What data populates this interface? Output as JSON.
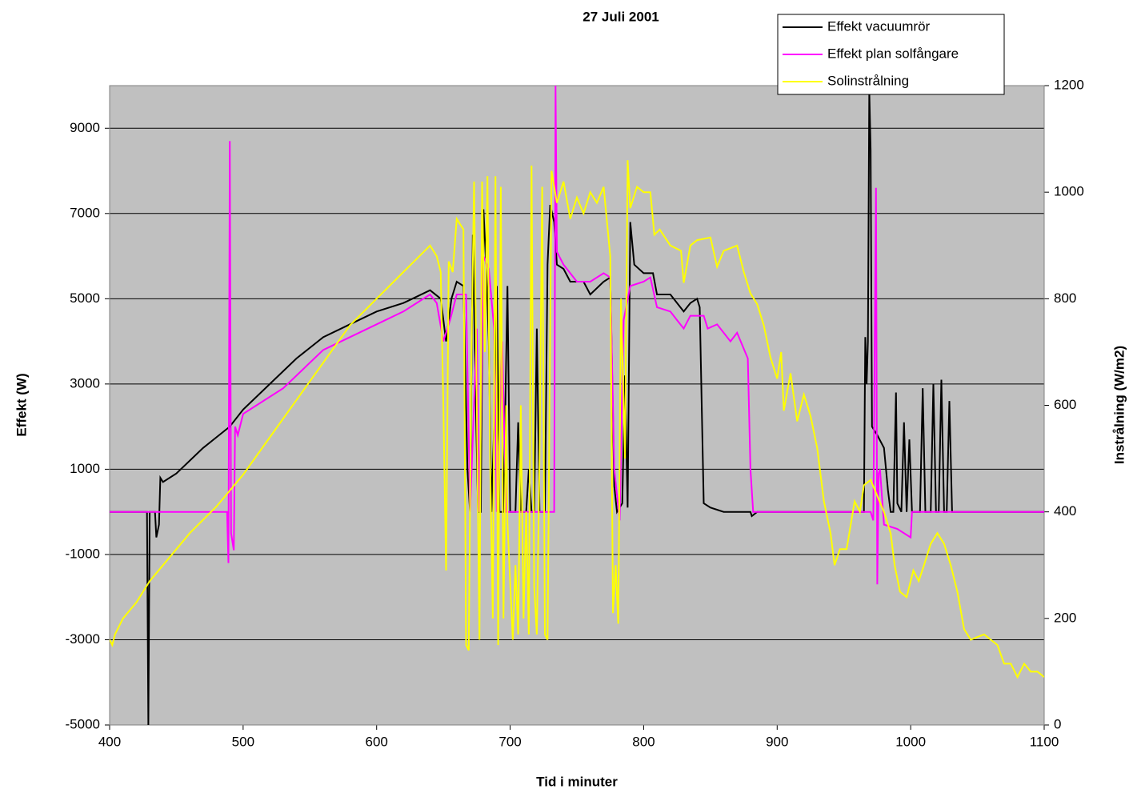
{
  "chart_data": {
    "type": "line",
    "title": "27 Juli 2001",
    "x_label": "Tid i minuter",
    "y_label": "Effekt (W)",
    "y2_label": "Instrålning (W/m2)",
    "xlim": [
      400,
      1100
    ],
    "xticks": [
      400,
      500,
      600,
      700,
      800,
      900,
      1000,
      1100
    ],
    "ylim": [
      -5000,
      10000
    ],
    "yticks": [
      -5000,
      -3000,
      -1000,
      1000,
      3000,
      5000,
      7000,
      9000
    ],
    "y2lim": [
      0,
      1200
    ],
    "y2ticks": [
      0,
      200,
      400,
      600,
      800,
      1000,
      1200
    ],
    "grid": true,
    "legend": "top-right",
    "series": [
      {
        "name": "Effekt vacuumrör",
        "color": "#000000",
        "x": [
          400,
          428,
          429,
          430,
          434,
          435,
          437,
          438,
          440,
          450,
          470,
          490,
          500,
          520,
          540,
          560,
          580,
          600,
          620,
          640,
          648,
          652,
          656,
          660,
          665,
          668,
          670,
          672,
          674,
          676,
          678,
          680,
          682,
          684,
          686,
          688,
          690,
          692,
          695,
          698,
          700,
          704,
          706,
          708,
          712,
          714,
          716,
          718,
          720,
          722,
          726,
          728,
          730,
          733,
          735,
          740,
          745,
          755,
          760,
          770,
          775,
          778,
          780,
          784,
          786,
          788,
          790,
          793,
          800,
          807,
          810,
          820,
          830,
          835,
          840,
          842,
          845,
          850,
          860,
          880,
          881,
          885,
          965,
          966,
          967,
          968,
          969,
          970,
          971,
          975,
          980,
          983,
          985,
          987,
          989,
          990,
          993,
          995,
          997,
          999,
          1001,
          1007,
          1009,
          1011,
          1015,
          1017,
          1019,
          1021,
          1023,
          1025,
          1027,
          1029,
          1031,
          1100
        ],
        "values": [
          0,
          0,
          -5000,
          0,
          0,
          -600,
          -300,
          800,
          700,
          900,
          1500,
          2000,
          2400,
          3000,
          3600,
          4100,
          4400,
          4700,
          4900,
          5200,
          5000,
          4000,
          5000,
          5400,
          5300,
          1000,
          0,
          6500,
          3000,
          0,
          0,
          7100,
          5800,
          4000,
          0,
          2000,
          5300,
          0,
          0,
          5300,
          0,
          0,
          2100,
          0,
          0,
          1000,
          0,
          0,
          4300,
          0,
          0,
          5800,
          7200,
          6800,
          5800,
          5700,
          5400,
          5400,
          5100,
          5400,
          5500,
          600,
          0,
          200,
          3200,
          100,
          6800,
          5800,
          5600,
          5600,
          5100,
          5100,
          4700,
          4900,
          5000,
          4800,
          200,
          100,
          0,
          0,
          -100,
          0,
          0,
          4100,
          3000,
          4000,
          9900,
          8500,
          2000,
          1800,
          1500,
          500,
          0,
          0,
          2800,
          200,
          0,
          2100,
          0,
          1700,
          0,
          0,
          2900,
          0,
          0,
          3000,
          0,
          0,
          3100,
          0,
          0,
          2600,
          0,
          0
        ]
      },
      {
        "name": "Effekt plan solfångare",
        "color": "#ff00ff",
        "x": [
          400,
          488,
          489,
          490,
          491,
          493,
          494,
          496,
          500,
          530,
          560,
          600,
          620,
          640,
          645,
          650,
          655,
          660,
          667,
          670,
          675,
          677,
          680,
          684,
          688,
          690,
          694,
          697,
          703,
          733,
          734,
          735,
          740,
          750,
          760,
          770,
          775,
          778,
          782,
          785,
          790,
          800,
          805,
          810,
          820,
          825,
          830,
          835,
          845,
          848,
          855,
          865,
          870,
          878,
          880,
          882,
          970,
          972,
          974,
          975,
          976,
          977,
          980,
          990,
          1000,
          1001,
          1100
        ],
        "values": [
          0,
          0,
          -1200,
          8700,
          -500,
          -900,
          2000,
          1800,
          2300,
          2900,
          3800,
          4400,
          4700,
          5100,
          4900,
          4000,
          4500,
          5100,
          5100,
          0,
          4300,
          0,
          6000,
          5700,
          4300,
          0,
          4000,
          0,
          0,
          0,
          10000,
          6100,
          5800,
          5400,
          5400,
          5600,
          5500,
          1000,
          -200,
          4500,
          5300,
          5400,
          5500,
          4800,
          4700,
          4500,
          4300,
          4600,
          4600,
          4300,
          4400,
          4000,
          4200,
          3600,
          1000,
          0,
          0,
          -200,
          7600,
          -1700,
          900,
          1000,
          -300,
          -400,
          -600,
          0,
          0
        ]
      },
      {
        "name": "Solinstrålning",
        "color": "#ffff00",
        "axis": "y2",
        "x": [
          400,
          402,
          404,
          410,
          420,
          430,
          440,
          460,
          480,
          500,
          520,
          540,
          560,
          580,
          600,
          620,
          630,
          640,
          645,
          648,
          650,
          652,
          654,
          657,
          660,
          665,
          667,
          669,
          671,
          673,
          675,
          677,
          679,
          681,
          683,
          685,
          687,
          689,
          691,
          693,
          695,
          697,
          698,
          702,
          704,
          706,
          708,
          710,
          712,
          714,
          716,
          718,
          720,
          722,
          724,
          726,
          728,
          731,
          735,
          740,
          745,
          750,
          755,
          760,
          765,
          770,
          775,
          777,
          779,
          781,
          783,
          786,
          788,
          790,
          795,
          800,
          805,
          808,
          812,
          820,
          828,
          830,
          835,
          840,
          850,
          855,
          860,
          870,
          875,
          880,
          885,
          890,
          895,
          900,
          903,
          905,
          910,
          915,
          920,
          925,
          930,
          935,
          940,
          943,
          947,
          952,
          958,
          962,
          965,
          970,
          975,
          980,
          985,
          988,
          992,
          997,
          1002,
          1006,
          1010,
          1015,
          1020,
          1025,
          1030,
          1035,
          1040,
          1045,
          1050,
          1055,
          1060,
          1065,
          1070,
          1075,
          1080,
          1085,
          1090,
          1095,
          1100
        ],
        "values": [
          160,
          150,
          170,
          200,
          230,
          270,
          300,
          360,
          410,
          470,
          540,
          610,
          680,
          750,
          800,
          850,
          875,
          900,
          880,
          850,
          600,
          290,
          870,
          850,
          950,
          930,
          150,
          140,
          700,
          1020,
          600,
          160,
          1020,
          700,
          1030,
          500,
          200,
          1030,
          150,
          1010,
          200,
          600,
          380,
          160,
          300,
          170,
          600,
          200,
          400,
          170,
          1050,
          260,
          170,
          500,
          1010,
          170,
          160,
          1040,
          980,
          1020,
          950,
          990,
          960,
          1000,
          980,
          1010,
          880,
          210,
          300,
          190,
          800,
          500,
          1060,
          970,
          1010,
          1000,
          1000,
          920,
          930,
          900,
          890,
          830,
          900,
          910,
          915,
          860,
          890,
          900,
          850,
          810,
          790,
          750,
          690,
          650,
          700,
          590,
          660,
          570,
          620,
          580,
          520,
          420,
          360,
          300,
          330,
          330,
          420,
          400,
          450,
          460,
          430,
          400,
          360,
          300,
          250,
          240,
          290,
          270,
          300,
          340,
          360,
          340,
          300,
          250,
          180,
          160,
          165,
          170,
          160,
          150,
          115,
          115,
          90,
          115,
          100,
          100,
          90
        ]
      }
    ]
  }
}
